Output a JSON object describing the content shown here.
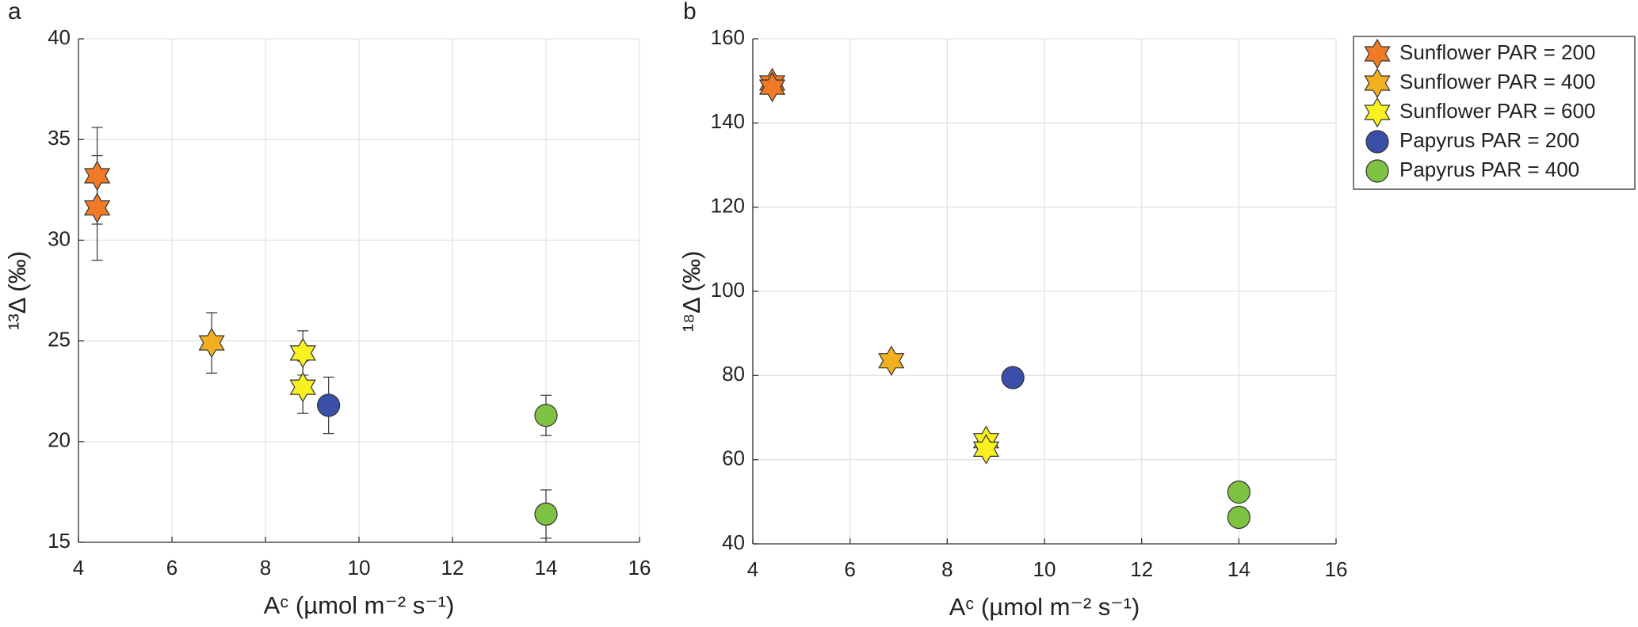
{
  "chart_data": [
    {
      "type": "scatter",
      "label": "a",
      "xlabel": "Aᶜ (µmol m⁻² s⁻¹)",
      "ylabel": "¹³Δ (‰)",
      "xlim": [
        4,
        16
      ],
      "xticks": [
        4,
        6,
        8,
        10,
        12,
        14,
        16
      ],
      "ylim": [
        15,
        40
      ],
      "yticks": [
        15,
        20,
        25,
        30,
        35,
        40
      ],
      "grid": true,
      "series": [
        {
          "color": "#f07a25",
          "marker": "star",
          "x": [
            4.4,
            4.4
          ],
          "y": [
            33.2,
            31.6
          ],
          "errors": [
            2.4,
            2.6
          ]
        },
        {
          "color": "#f0b020",
          "marker": "star",
          "x": [
            6.85
          ],
          "y": [
            24.9
          ],
          "errors": [
            1.5
          ]
        },
        {
          "color": "#f8f020",
          "marker": "star",
          "x": [
            8.8,
            8.8
          ],
          "y": [
            24.4,
            22.7
          ],
          "errors": [
            1.1,
            1.3
          ]
        },
        {
          "color": "#3a4fa8",
          "marker": "circle",
          "x": [
            9.35
          ],
          "y": [
            21.8
          ],
          "errors": [
            1.4
          ]
        },
        {
          "color": "#7dc242",
          "marker": "circle",
          "x": [
            14.0,
            14.0
          ],
          "y": [
            21.3,
            16.4
          ],
          "errors": [
            1.0,
            1.2
          ]
        }
      ]
    },
    {
      "type": "scatter",
      "label": "b",
      "xlabel": "Aᶜ (µmol m⁻² s⁻¹)",
      "ylabel": "¹⁸Δ (‰)",
      "xlim": [
        4,
        16
      ],
      "xticks": [
        4,
        6,
        8,
        10,
        12,
        14,
        16
      ],
      "ylim": [
        40,
        160
      ],
      "yticks": [
        40,
        60,
        80,
        100,
        120,
        140,
        160
      ],
      "grid": true,
      "legend": "outside right",
      "series": [
        {
          "name": "Sunflower PAR = 200",
          "color": "#f07a25",
          "marker": "star",
          "x": [
            4.4,
            4.4
          ],
          "y": [
            149.5,
            148.5
          ],
          "errors": [
            1.5,
            1.5
          ]
        },
        {
          "name": "Sunflower PAR = 400",
          "color": "#f0b020",
          "marker": "star",
          "x": [
            6.85
          ],
          "y": [
            83.5
          ]
        },
        {
          "name": "Sunflower PAR = 600",
          "color": "#f8f020",
          "marker": "star",
          "x": [
            8.8,
            8.8
          ],
          "y": [
            64.5,
            62.5
          ]
        },
        {
          "name": "Papyrus PAR = 200",
          "color": "#3a4fa8",
          "marker": "circle",
          "x": [
            9.35
          ],
          "y": [
            79.5
          ]
        },
        {
          "name": "Papyrus PAR = 400",
          "color": "#7dc242",
          "marker": "circle",
          "x": [
            14.0,
            14.0
          ],
          "y": [
            52.3,
            46.3
          ]
        }
      ]
    }
  ]
}
